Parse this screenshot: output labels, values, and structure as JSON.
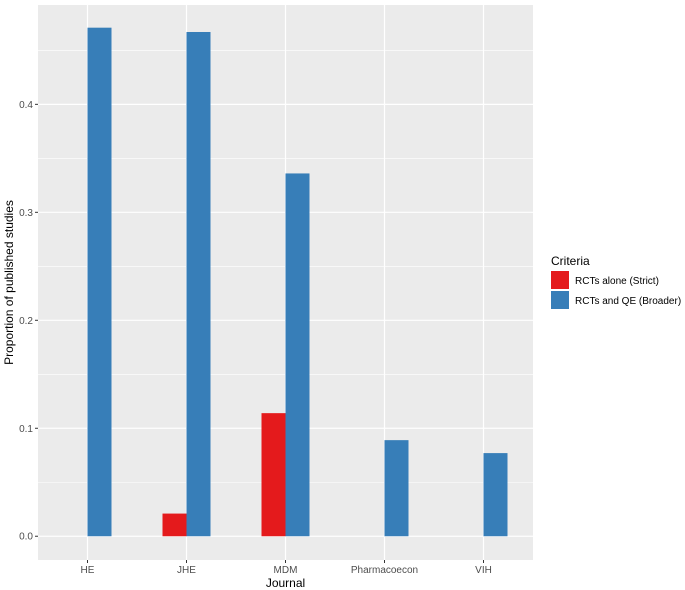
{
  "chart_data": {
    "type": "bar",
    "xlabel": "Journal",
    "ylabel": "Proportion of published studies",
    "categories": [
      "HE",
      "JHE",
      "MDM",
      "Pharmacoecon",
      "VIH"
    ],
    "series": [
      {
        "name": "RCTs alone (Strict)",
        "color": "#e41a1c",
        "values": [
          0,
          0.021,
          0.114,
          0,
          0
        ]
      },
      {
        "name": "RCTs and QE (Broader)",
        "color": "#377eb8",
        "values": [
          0.471,
          0.467,
          0.336,
          0.089,
          0.077
        ]
      }
    ],
    "ylim": [
      -0.022,
      0.492
    ],
    "yticks": [
      0.0,
      0.1,
      0.2,
      0.3,
      0.4
    ],
    "ytick_labels": [
      "0.0",
      "0.1",
      "0.2",
      "0.3",
      "0.4"
    ],
    "grid": true,
    "legend": {
      "title": "Criteria",
      "position": "right"
    },
    "panel_background": "#ebebeb"
  }
}
